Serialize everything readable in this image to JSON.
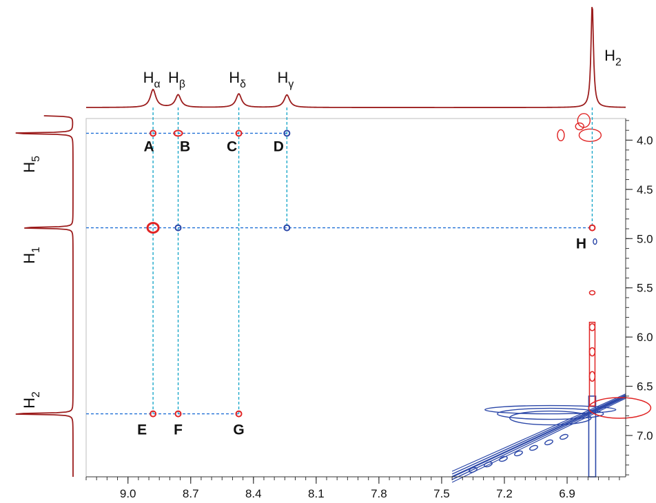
{
  "chart_data": {
    "type": "2d-nmr-contour",
    "x_axis": {
      "unit": "ppm",
      "range": [
        9.2,
        6.62
      ],
      "reversed": true,
      "tick_labels": [
        "9.0",
        "8.7",
        "8.4",
        "8.1",
        "7.8",
        "7.5",
        "7.2",
        "6.9"
      ],
      "tick_values": [
        9.0,
        8.7,
        8.4,
        8.1,
        7.8,
        7.5,
        7.2,
        6.9
      ],
      "minor_step": 0.05
    },
    "y_axis": {
      "unit": "ppm",
      "range": [
        3.78,
        7.42
      ],
      "position": "right",
      "tick_labels": [
        "4.0",
        "4.5",
        "5.0",
        "5.5",
        "6.0",
        "6.5",
        "7.0"
      ],
      "tick_values": [
        4.0,
        4.5,
        5.0,
        5.5,
        6.0,
        6.5,
        7.0
      ],
      "minor_step": 0.1
    },
    "top_projection_peaks": [
      {
        "base": "H",
        "sub": "α",
        "ppm": 8.88,
        "height": 0.17
      },
      {
        "base": "H",
        "sub": "β",
        "ppm": 8.76,
        "height": 0.12
      },
      {
        "base": "H",
        "sub": "δ",
        "ppm": 8.47,
        "height": 0.13
      },
      {
        "base": "H",
        "sub": "γ",
        "ppm": 8.24,
        "height": 0.12
      },
      {
        "base": "H",
        "sub": "2",
        "ppm": 6.78,
        "height": 1.0
      }
    ],
    "left_projection_peaks": [
      {
        "base": "H",
        "sub": "5",
        "ppm": 3.93,
        "height": 1.0
      },
      {
        "base": "H",
        "sub": "1",
        "ppm": 4.89,
        "height": 0.85
      },
      {
        "base": "H",
        "sub": "2",
        "ppm": 6.78,
        "height": 1.0
      }
    ],
    "left_projection_extra_peaks": [
      {
        "ppm": 3.75,
        "height": 0.45
      }
    ],
    "cross_peaks": [
      {
        "label": "A",
        "x": 8.88,
        "y": 3.93,
        "color": "red"
      },
      {
        "label": "B",
        "x": 8.76,
        "y": 3.93,
        "color": "red"
      },
      {
        "label": "C",
        "x": 8.47,
        "y": 3.93,
        "color": "red"
      },
      {
        "label": "D",
        "x": 8.24,
        "y": 3.93,
        "color": "blue"
      },
      {
        "label": "",
        "x": 8.88,
        "y": 4.89,
        "color": "red"
      },
      {
        "label": "",
        "x": 8.76,
        "y": 4.89,
        "color": "blue"
      },
      {
        "label": "",
        "x": 8.24,
        "y": 4.89,
        "color": "blue"
      },
      {
        "label": "H",
        "x": 6.78,
        "y": 4.89,
        "color": "red"
      },
      {
        "label": "E",
        "x": 8.88,
        "y": 6.78,
        "color": "red"
      },
      {
        "label": "F",
        "x": 8.76,
        "y": 6.78,
        "color": "red"
      },
      {
        "label": "G",
        "x": 8.47,
        "y": 6.78,
        "color": "red"
      }
    ],
    "guide_lines": {
      "horizontal": [
        {
          "y": 3.93,
          "from_x": 9.2,
          "to_x": 8.24
        },
        {
          "y": 4.89,
          "from_x": 9.2,
          "to_x": 6.78
        },
        {
          "y": 6.78,
          "from_x": 9.2,
          "to_x": 8.47
        }
      ],
      "vertical": [
        {
          "x": 8.88,
          "from_y": 3.78,
          "to_y": 6.78
        },
        {
          "x": 8.76,
          "from_y": 3.78,
          "to_y": 6.78
        },
        {
          "x": 8.47,
          "from_y": 3.78,
          "to_y": 6.78
        },
        {
          "x": 8.24,
          "from_y": 3.78,
          "to_y": 4.89
        },
        {
          "x": 6.78,
          "from_y": 3.78,
          "to_y": 4.89
        }
      ]
    },
    "diagonal_contours": {
      "color": "blue",
      "from": [
        7.45,
        7.42
      ],
      "to": [
        6.62,
        6.6
      ]
    },
    "colors": {
      "projection": "#9b1c1c",
      "positive_contour": "#e02424",
      "negative_contour": "#2b47a8",
      "guide_line": "#1f6fd6",
      "guide_line_vertical": "#1aa7c9",
      "axis": "#333333",
      "label": "#111111"
    }
  }
}
